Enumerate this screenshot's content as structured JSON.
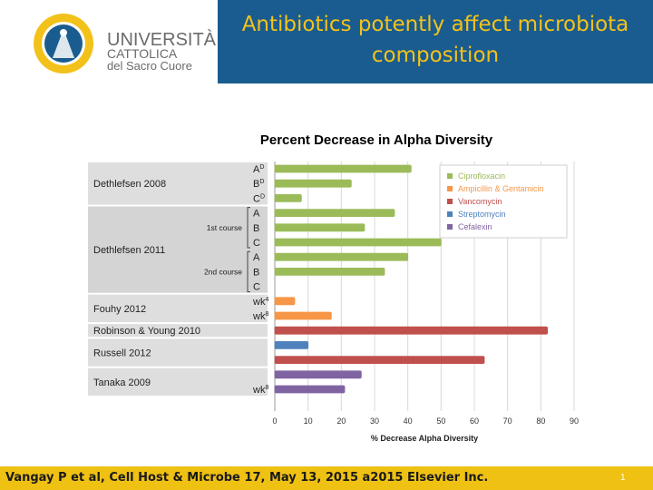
{
  "header": {
    "title_line1": "Antibiotics potently affect microbiota",
    "title_line2": "composition",
    "logo": {
      "name_line1": "UNIVERSITÀ",
      "name_line2": "CATTOLICA",
      "name_line3": "del Sacro Cuore"
    }
  },
  "footer": {
    "citation": "Vangay P et al, Cell Host & Microbe 17, May 13, 2015 a2015 Elsevier Inc.",
    "page_number": "1"
  },
  "colors": {
    "title_band": "#1a5c8f",
    "title_text": "#f4c21a",
    "footer_band": "#efc113",
    "Ciprofloxacin": "#9bbb59",
    "Ampicillin & Gentamicin": "#f79646",
    "Vancomycin": "#c0504d",
    "Streptomycin": "#4f81bd",
    "Cefalexin": "#8064a2"
  },
  "chart_data": {
    "type": "bar",
    "orientation": "horizontal",
    "title": "Percent Decrease in Alpha Diversity",
    "xlabel": "% Decrease Alpha Diversity",
    "xlim": [
      0,
      90
    ],
    "xticks": [
      0,
      10,
      20,
      30,
      40,
      50,
      60,
      70,
      80,
      90
    ],
    "legend": [
      "Ciprofloxacin",
      "Ampicillin & Gentamicin",
      "Vancomycin",
      "Streptomycin",
      "Cefalexin"
    ],
    "legend_position": "top-right",
    "studies": [
      {
        "label": "Dethlefsen 2008",
        "shaded": true
      },
      {
        "label": "Dethlefsen 2011",
        "shaded": false,
        "subgroups": [
          "1st course",
          "2nd course"
        ]
      },
      {
        "label": "Fouhy 2012",
        "shaded": true
      },
      {
        "label": "Robinson & Young 2010",
        "shaded": true
      },
      {
        "label": "Russell 2012",
        "shaded": true
      },
      {
        "label": "Tanaka 2009",
        "shaded": true
      }
    ],
    "bars": [
      {
        "study": "Dethlefsen 2008",
        "label": "A",
        "sup": "D",
        "value": 41,
        "drug": "Ciprofloxacin"
      },
      {
        "study": "Dethlefsen 2008",
        "label": "B",
        "sup": "D",
        "value": 23,
        "drug": "Ciprofloxacin"
      },
      {
        "study": "Dethlefsen 2008",
        "label": "C",
        "sup": "D",
        "value": 8,
        "drug": "Ciprofloxacin"
      },
      {
        "study": "Dethlefsen 2011",
        "group": "1st course",
        "label": "A",
        "value": 36,
        "drug": "Ciprofloxacin"
      },
      {
        "study": "Dethlefsen 2011",
        "group": "1st course",
        "label": "B",
        "value": 27,
        "drug": "Ciprofloxacin"
      },
      {
        "study": "Dethlefsen 2011",
        "group": "1st course",
        "label": "C",
        "value": 50,
        "drug": "Ciprofloxacin"
      },
      {
        "study": "Dethlefsen 2011",
        "group": "2nd course",
        "label": "A",
        "value": 40,
        "drug": "Ciprofloxacin"
      },
      {
        "study": "Dethlefsen 2011",
        "group": "2nd course",
        "label": "B",
        "value": 33,
        "drug": "Ciprofloxacin"
      },
      {
        "study": "Dethlefsen 2011",
        "group": "2nd course",
        "label": "C",
        "value": null,
        "drug": "Ciprofloxacin"
      },
      {
        "study": "Fouhy 2012",
        "label": "wk",
        "sup": "4",
        "value": 6,
        "drug": "Ampicillin & Gentamicin"
      },
      {
        "study": "Fouhy 2012",
        "label": "wk",
        "sup": "8",
        "value": 17,
        "drug": "Ampicillin & Gentamicin"
      },
      {
        "study": "Robinson & Young 2010",
        "label": "",
        "value": 82,
        "drug": "Vancomycin"
      },
      {
        "study": "Russell 2012",
        "label": "",
        "value": 10,
        "drug": "Streptomycin"
      },
      {
        "study": "Russell 2012",
        "label": "",
        "value": 63,
        "drug": "Vancomycin"
      },
      {
        "study": "Tanaka 2009",
        "label": "",
        "value": 26,
        "drug": "Cefalexin"
      },
      {
        "study": "Tanaka 2009",
        "label": "wk",
        "sup": "8",
        "value": 21,
        "drug": "Cefalexin"
      }
    ]
  }
}
